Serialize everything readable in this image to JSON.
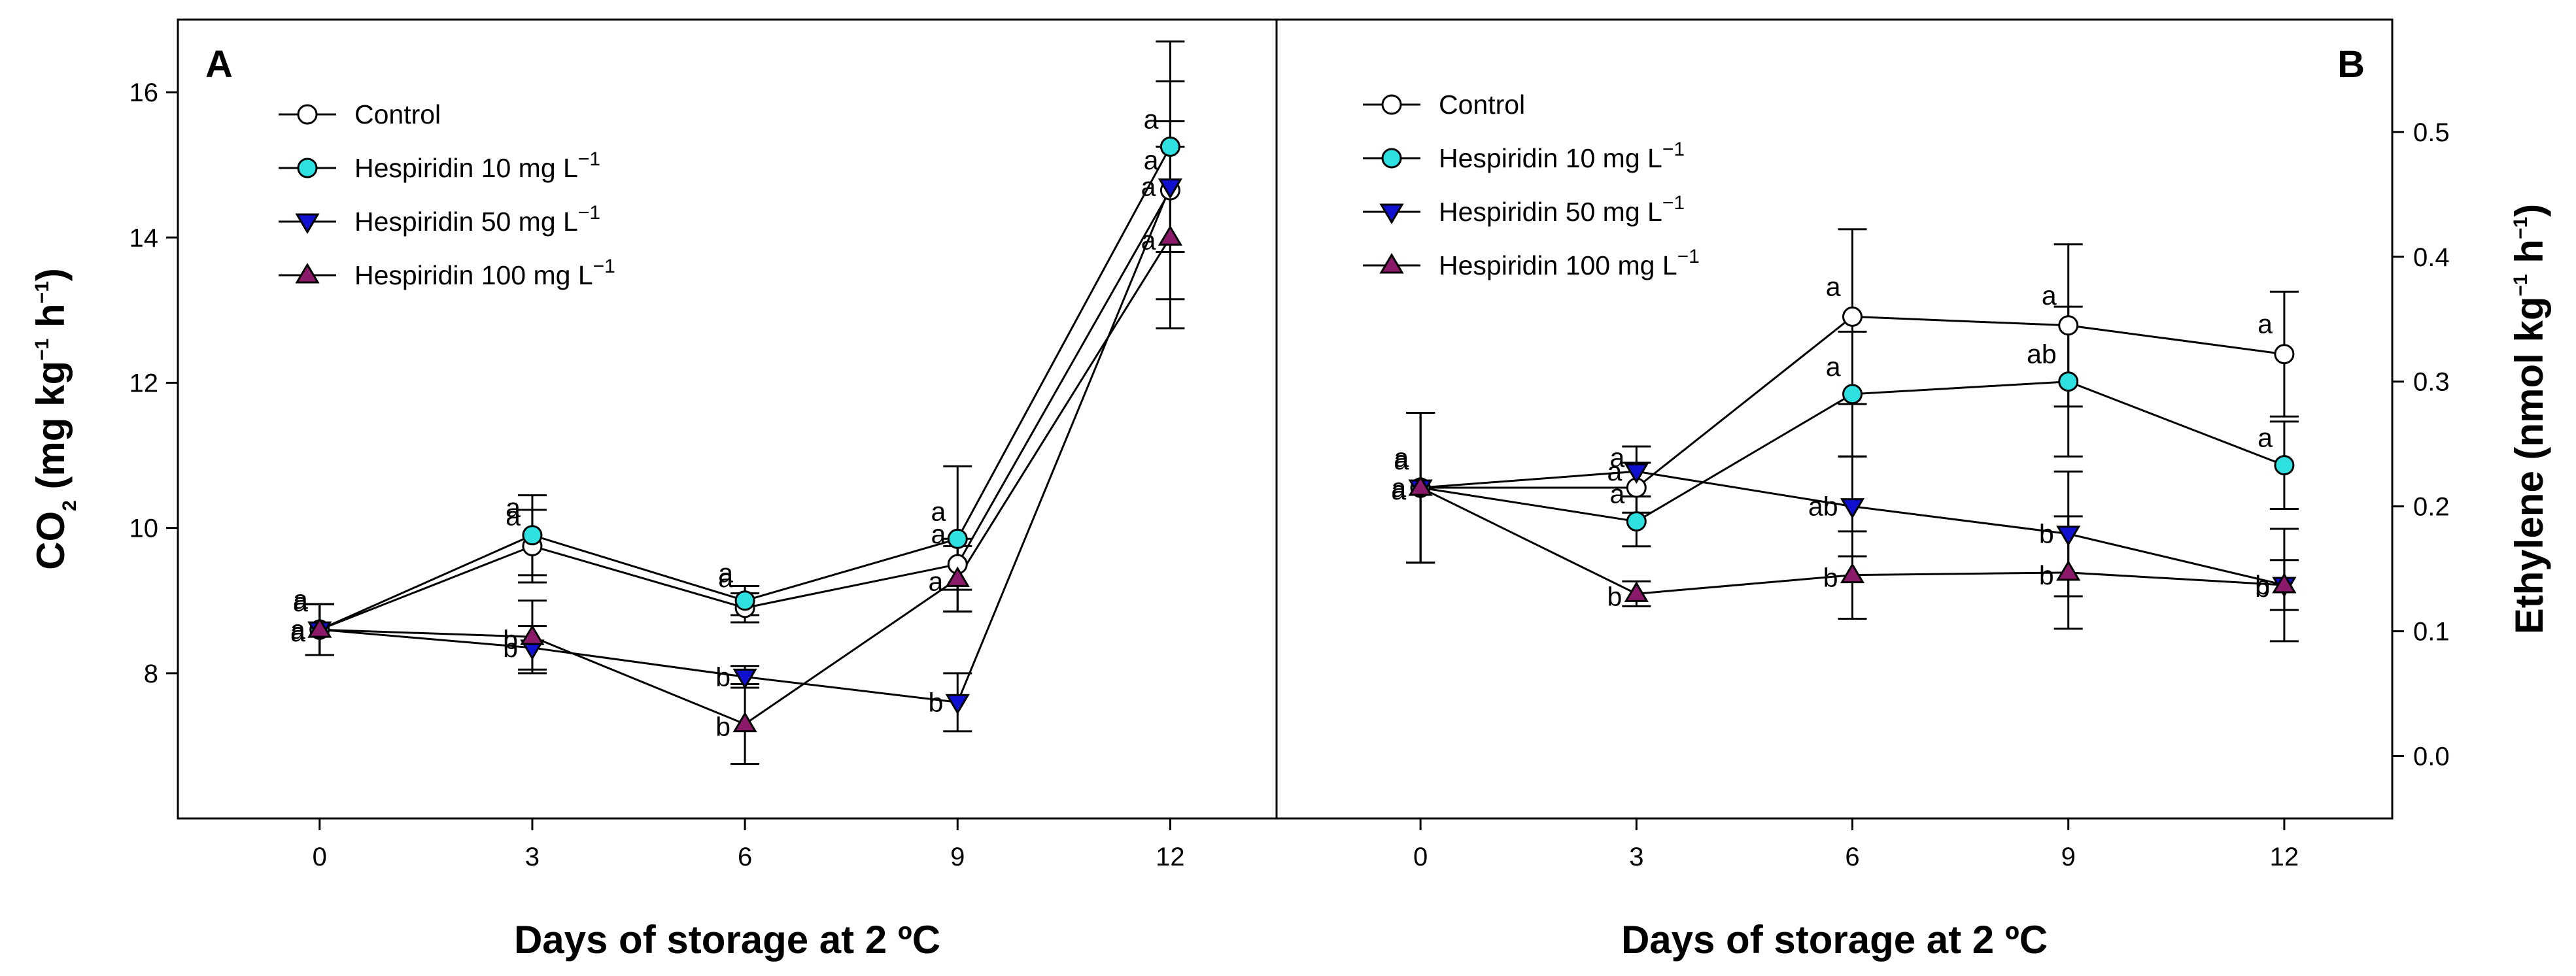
{
  "chart_data": [
    {
      "type": "line",
      "panel_label": "A",
      "xlabel": "Days of storage at  2 ºC",
      "ylabel": "CO2 (mg kg−1 h−1)",
      "ylabel_parts": {
        "main": "CO",
        "sub": "2",
        "unit_open": " (mg kg",
        "sup1": "−1",
        "mid": " h",
        "sup2": "−1",
        "close": ")"
      },
      "x": [
        0,
        3,
        6,
        9,
        12
      ],
      "xlim": [
        -2,
        13.5
      ],
      "ylim": [
        6.0,
        17.0
      ],
      "x_ticks": [
        0,
        3,
        6,
        9,
        12
      ],
      "y_ticks": [
        8,
        10,
        12,
        14,
        16
      ],
      "legend_position": "top-left",
      "series": [
        {
          "name": "Control",
          "legend_base": "Control",
          "legend_sup": "",
          "marker": "circle",
          "fill": "#ffffff",
          "values": [
            8.6,
            9.75,
            8.9,
            9.5,
            14.65
          ],
          "errors": [
            0.35,
            0.5,
            0.2,
            0.35,
            1.5
          ],
          "labels": [
            "a",
            "a",
            "a",
            "a",
            "a"
          ]
        },
        {
          "name": "Hespiridin 10 mg L−1",
          "legend_base": "Hespiridin 10 mg L",
          "legend_sup": "−1",
          "marker": "circle",
          "fill": "#2ee0e0",
          "values": [
            8.6,
            9.9,
            9.0,
            9.85,
            15.25
          ],
          "errors": [
            0.35,
            0.55,
            0.2,
            1.0,
            1.45
          ],
          "labels": [
            "a",
            "a",
            "a",
            "a",
            "a"
          ]
        },
        {
          "name": "Hespiridin 50 mg L−1",
          "legend_base": "Hespiridin 50 mg L",
          "legend_sup": "−1",
          "marker": "triangle-down",
          "fill": "#1010d0",
          "values": [
            8.6,
            8.35,
            7.95,
            7.6,
            14.7
          ],
          "errors": [
            0.35,
            0.3,
            0.15,
            0.4,
            0.9
          ],
          "labels": [
            "a",
            "b",
            "b",
            "b",
            "a"
          ]
        },
        {
          "name": "Hespiridin 100 mg L−1",
          "legend_base": "Hespiridin 100 mg L",
          "legend_sup": "−1",
          "marker": "triangle-up",
          "fill": "#8b1a6b",
          "values": [
            8.6,
            8.5,
            7.3,
            9.3,
            14.0
          ],
          "errors": [
            0.35,
            0.5,
            0.55,
            0.45,
            1.25
          ],
          "labels": [
            "a",
            "b",
            "b",
            "a",
            "a"
          ]
        }
      ]
    },
    {
      "type": "line",
      "panel_label": "B",
      "xlabel": "Days of storage at  2 ºC",
      "ylabel": "Ethylene (nmol kg−1 h−1)",
      "ylabel_parts": {
        "main": "Ethylene (nmol kg",
        "sup1": "−1",
        "mid": " h",
        "sup2": "−1",
        "close": ")"
      },
      "x": [
        0,
        3,
        6,
        9,
        12
      ],
      "xlim": [
        -2,
        13.5
      ],
      "ylim": [
        -0.05,
        0.59
      ],
      "x_ticks": [
        0,
        3,
        6,
        9,
        12
      ],
      "y_ticks": [
        0.0,
        0.1,
        0.2,
        0.3,
        0.4,
        0.5
      ],
      "y_tick_labels": [
        "0.0",
        "0.1",
        "0.2",
        "0.3",
        "0.4",
        "0.5"
      ],
      "legend_position": "top-left",
      "series": [
        {
          "name": "Control",
          "legend_base": "Control",
          "legend_sup": "",
          "marker": "circle",
          "fill": "#ffffff",
          "values": [
            0.215,
            0.215,
            0.352,
            0.345,
            0.322
          ],
          "errors": [
            0.06,
            0.02,
            0.07,
            0.065,
            0.05
          ],
          "labels": [
            "a",
            "a",
            "a",
            "a",
            "a"
          ]
        },
        {
          "name": "Hespiridin 10 mg L−1",
          "legend_base": "Hespiridin 10 mg L",
          "legend_sup": "−1",
          "marker": "circle",
          "fill": "#2ee0e0",
          "values": [
            0.215,
            0.188,
            0.29,
            0.3,
            0.233
          ],
          "errors": [
            0.06,
            0.02,
            0.05,
            0.06,
            0.035
          ],
          "labels": [
            "a",
            "a",
            "a",
            "ab",
            "a"
          ]
        },
        {
          "name": "Hespiridin 50 mg L−1",
          "legend_base": "Hespiridin 50 mg L",
          "legend_sup": "−1",
          "marker": "triangle-down",
          "fill": "#1010d0",
          "values": [
            0.215,
            0.228,
            0.2,
            0.178,
            0.137
          ],
          "errors": [
            0.06,
            0.02,
            0.04,
            0.05,
            0.02
          ],
          "labels": [
            "a",
            "a",
            "ab",
            "b",
            "b"
          ]
        },
        {
          "name": "Hespiridin 100 mg L−1",
          "legend_base": "Hespiridin 100 mg L",
          "legend_sup": "−1",
          "marker": "triangle-up",
          "fill": "#8b1a6b",
          "values": [
            0.215,
            0.13,
            0.145,
            0.147,
            0.137
          ],
          "errors": [
            0.06,
            0.01,
            0.035,
            0.045,
            0.045
          ],
          "labels": [
            "a",
            "b",
            "b",
            "b",
            "b"
          ]
        }
      ]
    }
  ]
}
